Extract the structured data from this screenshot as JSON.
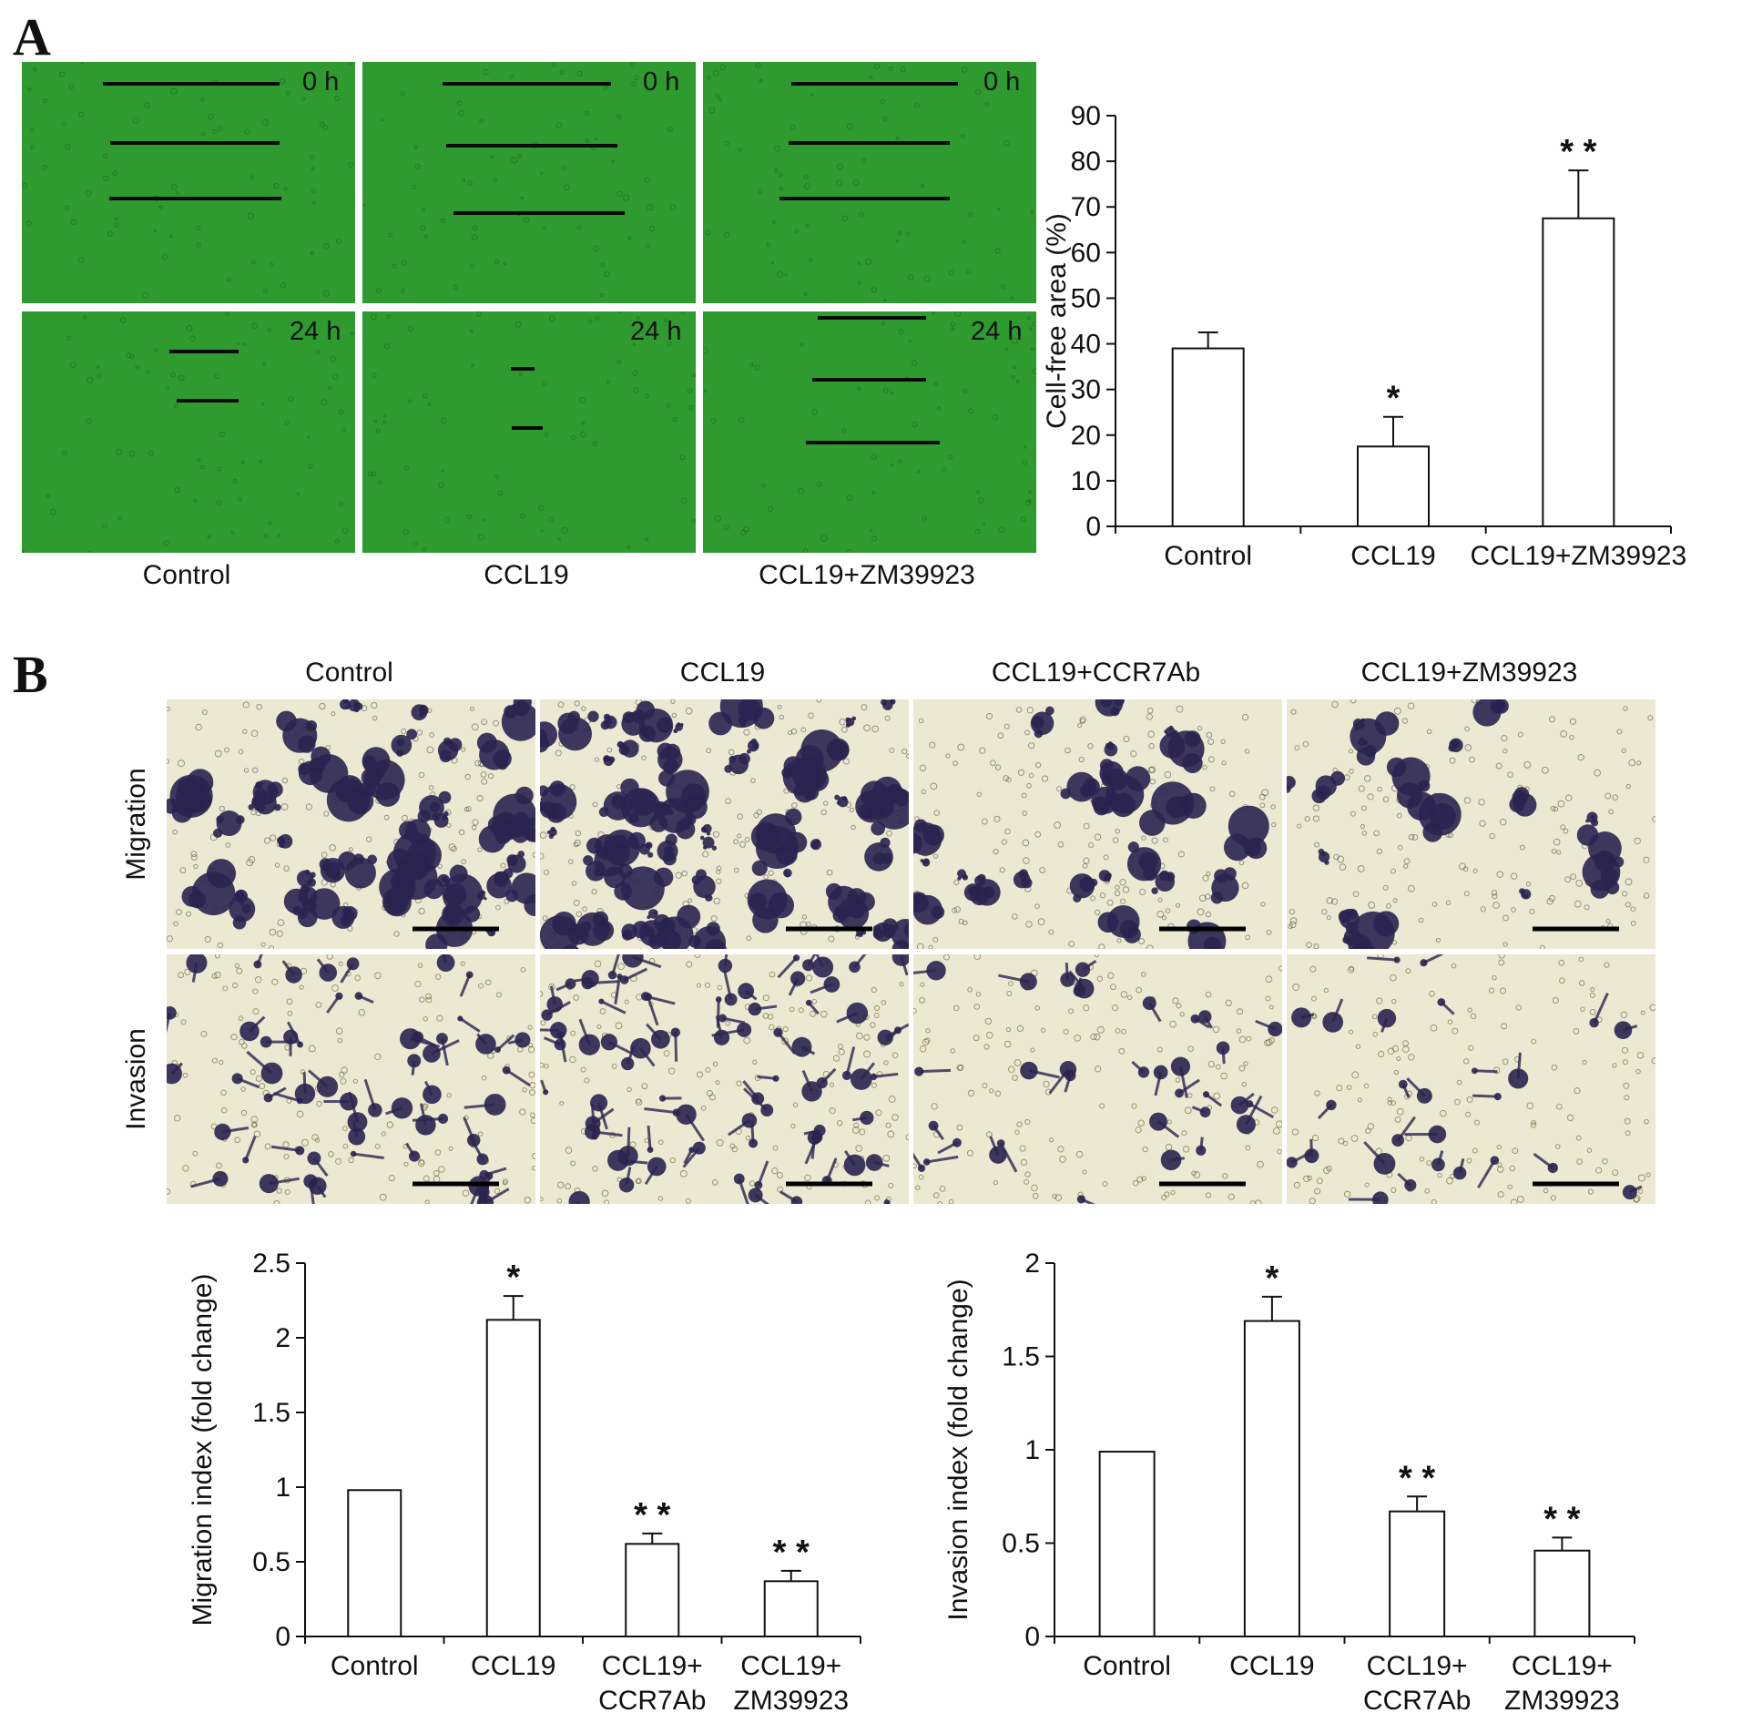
{
  "panel_a": {
    "letter": "A",
    "wound_columns": [
      "Control",
      "CCL19",
      "CCL19+ZM39923"
    ],
    "time_labels": [
      "0 h",
      "24 h"
    ]
  },
  "panel_b": {
    "letter": "B",
    "columns": [
      "Control",
      "CCL19",
      "CCL19+CCR7Ab",
      "CCL19+ZM39923"
    ],
    "rows": [
      "Migration",
      "Invasion"
    ]
  },
  "colors": {
    "wound_green": "#2f9a2f",
    "stain_bg": "#ece9d2",
    "stain_cell": "#2a2450",
    "bar_fill": "#ffffff",
    "axis": "#111111"
  },
  "chart_data": [
    {
      "type": "bar",
      "categories": [
        "Control",
        "CCL19",
        "CCL19+ZM39923"
      ],
      "values": [
        39,
        17.5,
        67.5
      ],
      "errors": [
        3.5,
        6.5,
        10.5
      ],
      "annotations": [
        "",
        "*",
        "* *"
      ],
      "title": "",
      "xlabel": "",
      "ylabel": "Cell-free area (%)",
      "ylim": [
        0,
        90
      ],
      "yticks": [
        0,
        10,
        20,
        30,
        40,
        50,
        60,
        70,
        80,
        90
      ],
      "grid": false
    },
    {
      "type": "bar",
      "categories": [
        [
          "Control"
        ],
        [
          "CCL19"
        ],
        [
          "CCL19+",
          "CCR7Ab"
        ],
        [
          "CCL19+",
          "ZM39923"
        ]
      ],
      "values": [
        0.98,
        2.12,
        0.62,
        0.37
      ],
      "errors": [
        0,
        0.16,
        0.07,
        0.07
      ],
      "annotations": [
        "",
        "*",
        "* *",
        "* *"
      ],
      "title": "",
      "xlabel": "",
      "ylabel": "Migration index (fold change)",
      "ylim": [
        0,
        2.5
      ],
      "yticks": [
        0,
        0.5,
        1,
        1.5,
        2,
        2.5
      ],
      "grid": false
    },
    {
      "type": "bar",
      "categories": [
        [
          "Control"
        ],
        [
          "CCL19"
        ],
        [
          "CCL19+",
          "CCR7Ab"
        ],
        [
          "CCL19+",
          "ZM39923"
        ]
      ],
      "values": [
        0.99,
        1.69,
        0.67,
        0.46
      ],
      "errors": [
        0,
        0.13,
        0.08,
        0.07
      ],
      "annotations": [
        "",
        "*",
        "* *",
        "* *"
      ],
      "title": "",
      "xlabel": "",
      "ylabel": "Invasion index (fold change)",
      "ylim": [
        0,
        2
      ],
      "yticks": [
        0,
        0.5,
        1,
        1.5,
        2
      ],
      "grid": false
    }
  ]
}
